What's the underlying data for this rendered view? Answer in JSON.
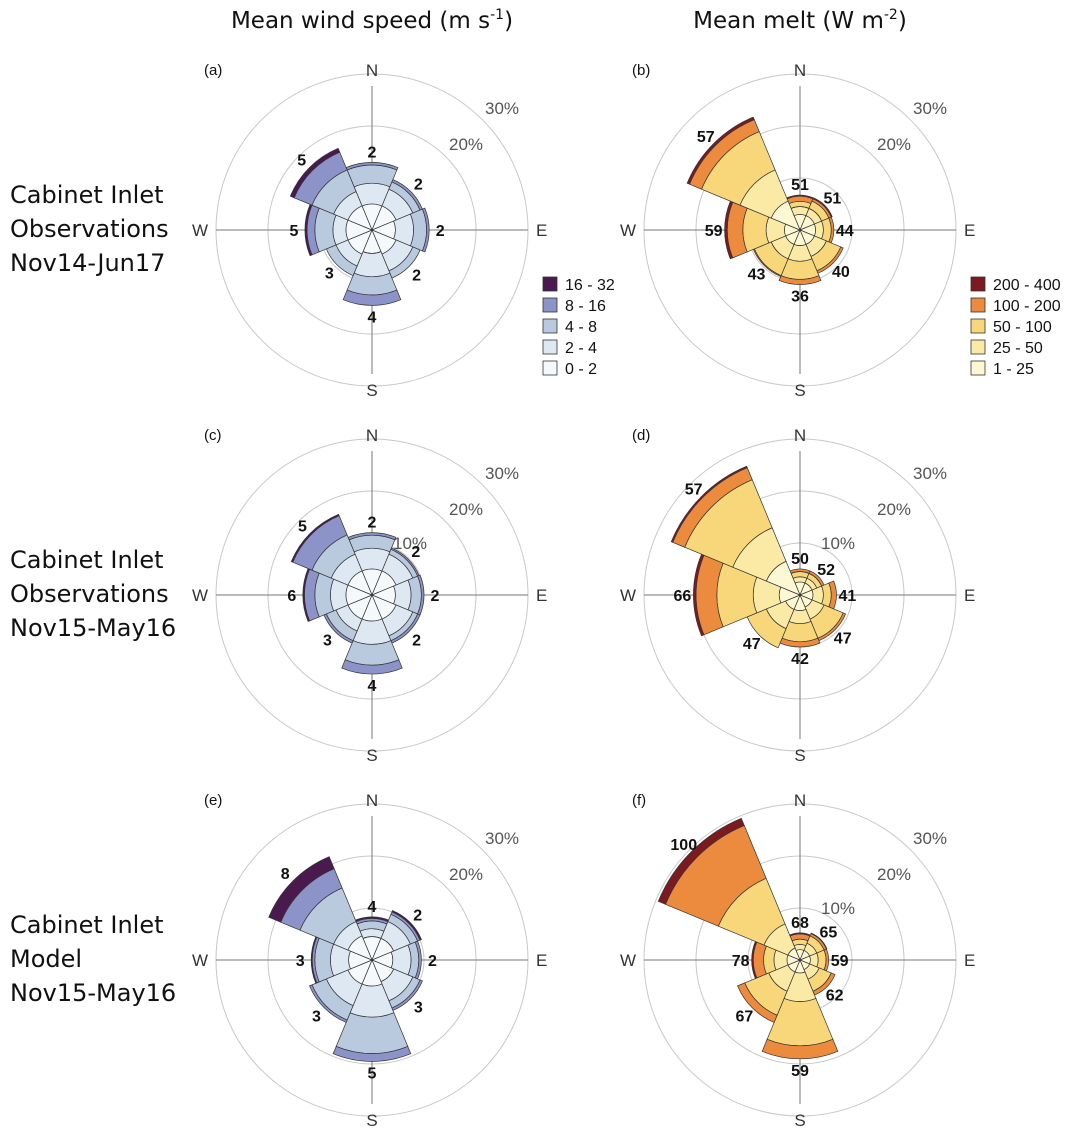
{
  "figure": {
    "column_titles": [
      {
        "text": "Mean wind speed (m s",
        "sup": "-1",
        "close": ")"
      },
      {
        "text": "Mean melt (W m",
        "sup": "-2",
        "close": ")"
      }
    ],
    "row_labels": [
      [
        "Cabinet Inlet",
        "Observations",
        "Nov14-Jun17"
      ],
      [
        "Cabinet Inlet",
        "Observations",
        "Nov15-May16"
      ],
      [
        "Cabinet Inlet",
        "Model",
        "Nov15-May16"
      ]
    ],
    "compass": {
      "N": "N",
      "E": "E",
      "S": "S",
      "W": "W"
    },
    "legends": {
      "wind": {
        "entries": [
          "16 - 32",
          "8 - 16",
          "4 - 8",
          "2 - 4",
          "0 - 2"
        ],
        "colors": [
          "#4a1a4f",
          "#8b93c8",
          "#b9c9de",
          "#dde8f2",
          "#f6f9fb"
        ]
      },
      "melt": {
        "entries": [
          "200 - 400",
          "100 - 200",
          "50 - 100",
          "25 - 50",
          "1 - 25"
        ],
        "colors": [
          "#7c1a22",
          "#ec8a3e",
          "#f8d77a",
          "#fbeaa6",
          "#fdf8d4"
        ]
      }
    }
  },
  "chart_data": [
    {
      "type": "wind-rose",
      "panel": "(a)",
      "variable": "wind",
      "directions": [
        "N",
        "NE",
        "E",
        "SE",
        "S",
        "SW",
        "W",
        "NW"
      ],
      "bins": [
        "0 - 2",
        "2 - 4",
        "4 - 8",
        "8 - 16",
        "16 - 32"
      ],
      "frequency_percent_cumulative": [
        [
          5,
          9,
          12.5,
          13,
          13
        ],
        [
          5,
          8.5,
          10,
          10.5,
          10.5
        ],
        [
          4.5,
          8,
          10.5,
          11,
          11
        ],
        [
          5,
          8.5,
          10,
          10,
          10
        ],
        [
          4.5,
          9,
          12.5,
          14.5,
          14.5
        ],
        [
          5,
          7.5,
          9.5,
          9.5,
          9.5
        ],
        [
          5,
          7.5,
          11,
          12.5,
          12.9
        ],
        [
          5,
          8,
          12.5,
          16.2,
          17
        ]
      ],
      "labels": [
        "2",
        "2",
        "2",
        "2",
        "4",
        "3",
        "5",
        "5"
      ],
      "rings": [
        "10%",
        "20%",
        "30%"
      ],
      "ring_labels_shown": [
        "20%",
        "30%"
      ]
    },
    {
      "type": "wind-rose",
      "panel": "(b)",
      "variable": "melt",
      "directions": [
        "N",
        "NE",
        "E",
        "SE",
        "S",
        "SW",
        "W",
        "NW"
      ],
      "bins": [
        "1 - 25",
        "25 - 50",
        "50 - 100",
        "100 - 200",
        "200 - 400"
      ],
      "frequency_percent_cumulative": [
        [
          3,
          4.5,
          5.5,
          6.5,
          6.7
        ],
        [
          3,
          4.5,
          6,
          6.5,
          6.7
        ],
        [
          3,
          4.5,
          6,
          6.5,
          6.5
        ],
        [
          3,
          5.5,
          8.5,
          9,
          9
        ],
        [
          3,
          6,
          9.5,
          10.5,
          10.5
        ],
        [
          3,
          6,
          9.5,
          9.7,
          9.7
        ],
        [
          3,
          6.5,
          11,
          14,
          14.5
        ],
        [
          6,
          12.5,
          20.5,
          23,
          23.5
        ]
      ],
      "labels": [
        "51",
        "51",
        "44",
        "40",
        "36",
        "43",
        "59",
        "57"
      ],
      "rings": [
        "10%",
        "20%",
        "30%"
      ],
      "ring_labels_shown": [
        "20%",
        "30%"
      ]
    },
    {
      "type": "wind-rose",
      "panel": "(c)",
      "variable": "wind",
      "directions": [
        "N",
        "NE",
        "E",
        "SE",
        "S",
        "SW",
        "W",
        "NW"
      ],
      "bins": [
        "0 - 2",
        "2 - 4",
        "4 - 8",
        "8 - 16",
        "16 - 32"
      ],
      "frequency_percent_cumulative": [
        [
          5,
          9,
          11.5,
          12,
          12
        ],
        [
          5,
          8.5,
          9.5,
          9.8,
          9.8
        ],
        [
          4.5,
          7.5,
          9.5,
          10,
          10
        ],
        [
          5,
          8.5,
          9.5,
          10,
          10
        ],
        [
          5,
          9.5,
          13.5,
          15.2,
          15.2
        ],
        [
          5,
          7.5,
          9.5,
          10,
          10
        ],
        [
          5,
          8,
          11,
          13,
          13.3
        ],
        [
          5,
          8.5,
          12.5,
          16.5,
          16.8
        ]
      ],
      "labels": [
        "2",
        "2",
        "2",
        "2",
        "4",
        "3",
        "6",
        "5"
      ],
      "rings": [
        "10%",
        "20%",
        "30%"
      ],
      "ring_labels_shown": [
        "10%",
        "20%",
        "30%"
      ]
    },
    {
      "type": "wind-rose",
      "panel": "(d)",
      "variable": "melt",
      "directions": [
        "N",
        "NE",
        "E",
        "SE",
        "S",
        "SW",
        "W",
        "NW"
      ],
      "bins": [
        "1 - 25",
        "25 - 50",
        "50 - 100",
        "100 - 200",
        "200 - 400"
      ],
      "frequency_percent_cumulative": [
        [
          2.5,
          3.5,
          4.5,
          5,
          5
        ],
        [
          2.5,
          3.5,
          4.5,
          5,
          5
        ],
        [
          2.5,
          4.5,
          6,
          7,
          7
        ],
        [
          2.5,
          5,
          9,
          9.5,
          9.5
        ],
        [
          3,
          5.5,
          9,
          10,
          10
        ],
        [
          3,
          7,
          11,
          11,
          11
        ],
        [
          4,
          9,
          16,
          20,
          20.5
        ],
        [
          7,
          14,
          24,
          26.5,
          26.8
        ]
      ],
      "labels": [
        "50",
        "52",
        "41",
        "47",
        "42",
        "47",
        "66",
        "57"
      ],
      "rings": [
        "10%",
        "20%",
        "30%"
      ],
      "ring_labels_shown": [
        "10%",
        "20%",
        "30%"
      ]
    },
    {
      "type": "wind-rose",
      "panel": "(e)",
      "variable": "wind",
      "directions": [
        "N",
        "NE",
        "E",
        "SE",
        "S",
        "SW",
        "W",
        "NW"
      ],
      "bins": [
        "0 - 2",
        "2 - 4",
        "4 - 8",
        "8 - 16",
        "16 - 32"
      ],
      "frequency_percent_cumulative": [
        [
          4.5,
          6,
          7.5,
          8,
          8.3
        ],
        [
          4.5,
          8,
          9.5,
          10,
          10.3
        ],
        [
          4,
          7.5,
          9,
          9.5,
          9.5
        ],
        [
          4.5,
          8.5,
          10,
          10.5,
          10.5
        ],
        [
          5,
          11,
          18,
          19.5,
          19.5
        ],
        [
          5,
          9.5,
          12.5,
          13,
          13
        ],
        [
          4.5,
          8,
          11,
          11.5,
          11.7
        ],
        [
          5,
          8,
          15,
          19,
          21.5
        ]
      ],
      "labels": [
        "4",
        "2",
        "2",
        "3",
        "5",
        "3",
        "3",
        "8"
      ],
      "rings": [
        "10%",
        "20%",
        "30%"
      ],
      "ring_labels_shown": [
        "20%",
        "30%"
      ]
    },
    {
      "type": "wind-rose",
      "panel": "(f)",
      "variable": "melt",
      "directions": [
        "N",
        "NE",
        "E",
        "SE",
        "S",
        "SW",
        "W",
        "NW"
      ],
      "bins": [
        "1 - 25",
        "25 - 50",
        "50 - 100",
        "100 - 200",
        "200 - 400"
      ],
      "frequency_percent_cumulative": [
        [
          2,
          3,
          4,
          5,
          5.2
        ],
        [
          2,
          3.5,
          5,
          5.5,
          5.6
        ],
        [
          2,
          3.5,
          5,
          5.5,
          5.5
        ],
        [
          2,
          4,
          6.5,
          7.3,
          7.3
        ],
        [
          2.5,
          8,
          16.5,
          19,
          19
        ],
        [
          2.5,
          6.5,
          11.5,
          13,
          13
        ],
        [
          2.5,
          5,
          7,
          9,
          9.3
        ],
        [
          2.5,
          7.5,
          17,
          28,
          29.5
        ]
      ],
      "labels": [
        "68",
        "65",
        "59",
        "62",
        "59",
        "67",
        "78",
        "100"
      ],
      "rings": [
        "10%",
        "20%",
        "30%"
      ],
      "ring_labels_shown": [
        "10%",
        "20%",
        "30%"
      ]
    }
  ]
}
